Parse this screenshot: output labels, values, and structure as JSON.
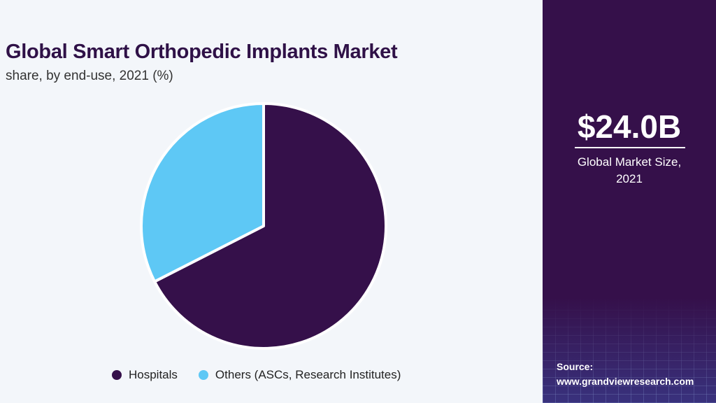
{
  "header": {
    "title": "Global Smart Orthopedic Implants Market",
    "subtitle": "share, by end-use, 2021 (%)"
  },
  "chart_data": {
    "type": "pie",
    "categories": [
      "Hospitals",
      "Others (ASCs, Research Institutes)"
    ],
    "values": [
      67.5,
      32.5
    ],
    "colors": [
      "#35104a",
      "#5ec8f5"
    ],
    "start_angle_deg": 0,
    "direction": "clockwise",
    "legend_position": "bottom"
  },
  "sidebar": {
    "market_size": "$24.0B",
    "caption_line1": "Global Market Size,",
    "caption_line2": "2021",
    "source_label": "Source:",
    "source_url": "www.grandviewresearch.com",
    "background_color": "#35104a"
  }
}
